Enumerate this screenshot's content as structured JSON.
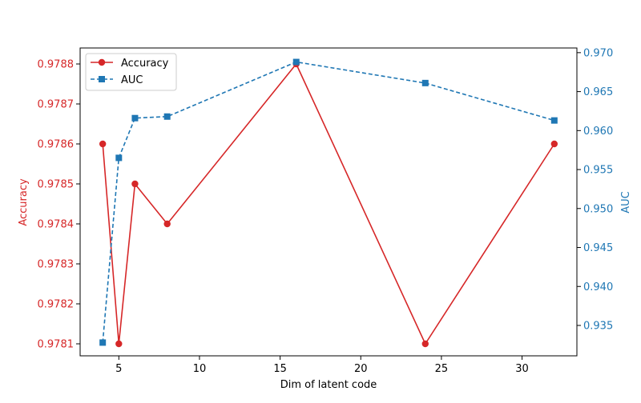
{
  "chart_data": {
    "type": "line",
    "title": "",
    "xlabel": "Dim of latent code",
    "ylabel_left": "Accuracy",
    "ylabel_right": "AUC",
    "x": [
      4,
      5,
      6,
      8,
      16,
      24,
      32
    ],
    "xlim": [
      2.6,
      33.4
    ],
    "xticks": [
      5,
      10,
      15,
      20,
      25,
      30
    ],
    "ylim_left": [
      0.97807,
      0.97884
    ],
    "yticks_left": [
      "0.9781",
      "0.9782",
      "0.9783",
      "0.9784",
      "0.9785",
      "0.9786",
      "0.9787",
      "0.9788"
    ],
    "ylim_right": [
      0.9311,
      0.9706
    ],
    "yticks_right": [
      "0.935",
      "0.940",
      "0.945",
      "0.950",
      "0.955",
      "0.960",
      "0.965",
      "0.970"
    ],
    "grid": false,
    "legend_position": "top-left",
    "series": [
      {
        "name": "Accuracy",
        "axis": "left",
        "color": "#d62728",
        "marker": "circle",
        "linestyle": "solid",
        "values": [
          0.9786,
          0.9781,
          0.9785,
          0.9784,
          0.9788,
          0.9781,
          0.9786
        ]
      },
      {
        "name": "AUC",
        "axis": "right",
        "color": "#1f77b4",
        "marker": "square",
        "linestyle": "dashed",
        "values": [
          0.9328,
          0.9565,
          0.9616,
          0.9618,
          0.9688,
          0.9661,
          0.9613
        ]
      }
    ]
  }
}
